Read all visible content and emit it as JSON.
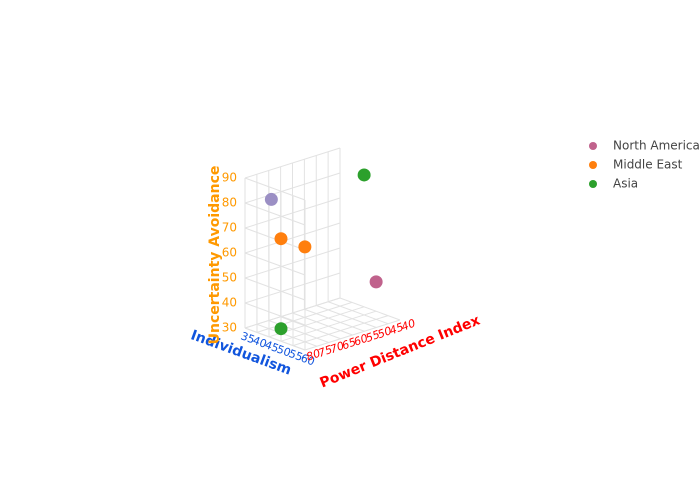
{
  "chart_data": {
    "type": "scatter3d",
    "x_label": "Power Distance Index",
    "y_label": "Individualism",
    "z_label": "Uncertainty Avoidance",
    "xlim": [
      80,
      40
    ],
    "xticks": [
      80,
      75,
      70,
      65,
      60,
      55,
      50,
      45,
      40
    ],
    "ylim": [
      35,
      60
    ],
    "yticks": [
      35,
      40,
      45,
      50,
      55,
      60
    ],
    "zlim": [
      30,
      90
    ],
    "zticks": [
      30,
      40,
      50,
      60,
      70,
      80,
      90
    ],
    "x_color": "#ff0000",
    "y_color": "#1155dd",
    "z_color": "#ff9900",
    "grid": true,
    "series": [
      {
        "name": "North America",
        "color": "#c0628c",
        "point_colors": [
          "#9b8fc4",
          "#c0628c"
        ],
        "x": [
          78,
          45
        ],
        "y": [
          44,
          55
        ],
        "z": [
          84,
          45
        ]
      },
      {
        "name": "Middle East",
        "color": "#ff7f0e",
        "x": [
          80,
          75
        ],
        "y": [
          50,
          55
        ],
        "z": [
          71,
          68
        ]
      },
      {
        "name": "Asia",
        "color": "#2ca02c",
        "x": [
          45,
          80
        ],
        "y": [
          50,
          50
        ],
        "z": [
          86,
          35
        ]
      }
    ]
  }
}
